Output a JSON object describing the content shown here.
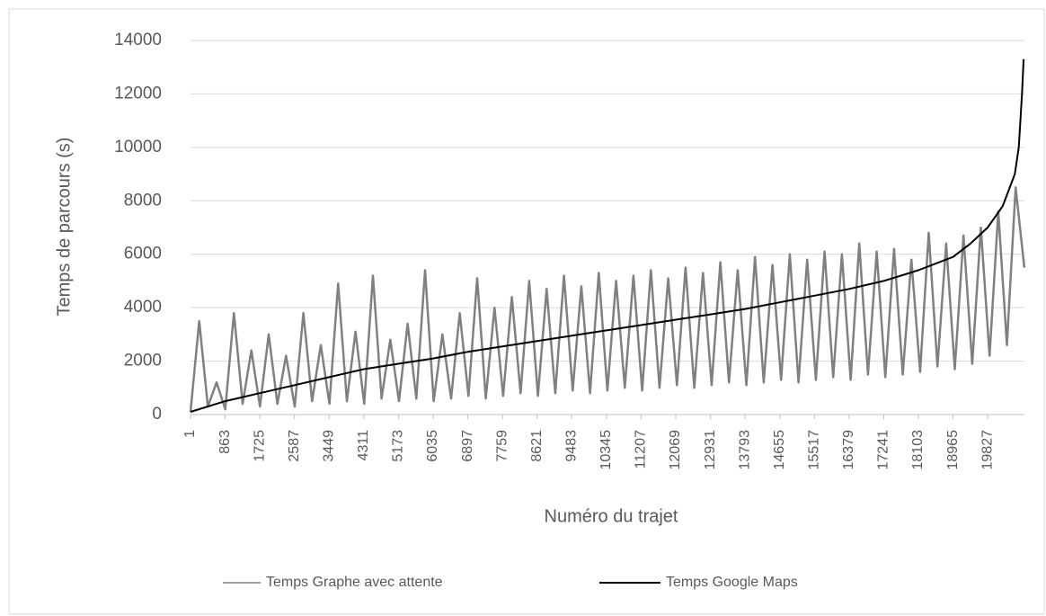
{
  "chart_data": {
    "type": "line",
    "xlabel": "Numéro du trajet",
    "ylabel": "Temps de parcours  (s)",
    "xlim": [
      1,
      20740
    ],
    "xticks": [
      1,
      863,
      1725,
      2587,
      3449,
      4311,
      5173,
      6035,
      6897,
      7759,
      8621,
      9483,
      10345,
      11207,
      12069,
      12931,
      13793,
      14655,
      15517,
      16379,
      17241,
      18103,
      18965,
      19827
    ],
    "ylim": [
      0,
      14000
    ],
    "yticks": [
      0,
      2000,
      4000,
      6000,
      8000,
      10000,
      12000,
      14000
    ],
    "grid": true,
    "legend": "bottom",
    "series": [
      {
        "name": "Temps Graphe avec attente",
        "color": "#808080",
        "x": [
          1,
          217,
          433,
          649,
          865,
          1081,
          1297,
          1513,
          1729,
          1945,
          2161,
          2377,
          2593,
          2809,
          3025,
          3241,
          3457,
          3673,
          3889,
          4105,
          4321,
          4537,
          4753,
          4969,
          5185,
          5401,
          5617,
          5833,
          6049,
          6265,
          6481,
          6697,
          6913,
          7129,
          7345,
          7561,
          7777,
          7993,
          8209,
          8425,
          8641,
          8857,
          9073,
          9289,
          9505,
          9721,
          9937,
          10153,
          10369,
          10585,
          10801,
          11017,
          11233,
          11449,
          11665,
          11881,
          12097,
          12313,
          12529,
          12745,
          12961,
          13177,
          13393,
          13609,
          13825,
          14041,
          14257,
          14473,
          14689,
          14905,
          15121,
          15337,
          15553,
          15769,
          15985,
          16201,
          16417,
          16633,
          16849,
          17065,
          17281,
          17497,
          17713,
          17929,
          18145,
          18361,
          18577,
          18793,
          19009,
          19225,
          19441,
          19657,
          19873,
          20089,
          20305,
          20521,
          20737
        ],
        "values": [
          100,
          3500,
          300,
          1200,
          200,
          3800,
          400,
          2400,
          300,
          3000,
          400,
          2200,
          300,
          3800,
          500,
          2600,
          400,
          4900,
          500,
          3100,
          400,
          5200,
          600,
          2800,
          500,
          3400,
          600,
          5400,
          500,
          3000,
          600,
          3800,
          700,
          5100,
          600,
          4000,
          700,
          4400,
          800,
          5000,
          700,
          4700,
          800,
          5200,
          900,
          4800,
          800,
          5300,
          900,
          5000,
          1000,
          5200,
          900,
          5400,
          1000,
          5100,
          1100,
          5500,
          1000,
          5300,
          1100,
          5700,
          1200,
          5400,
          1100,
          5900,
          1200,
          5600,
          1300,
          6000,
          1200,
          5800,
          1300,
          6100,
          1400,
          6000,
          1300,
          6400,
          1500,
          6100,
          1400,
          6200,
          1500,
          5800,
          1600,
          6800,
          1800,
          6400,
          1700,
          6700,
          1900,
          7000,
          2200,
          7600,
          2600,
          8500,
          5500
        ]
      },
      {
        "name": "Temps Google Maps",
        "color": "#000000",
        "x": [
          1,
          863,
          1725,
          2587,
          3449,
          4311,
          5173,
          6035,
          6897,
          7759,
          8621,
          9483,
          10345,
          11207,
          12069,
          12931,
          13793,
          14655,
          15517,
          16379,
          17241,
          18103,
          18965,
          19400,
          19827,
          20200,
          20500,
          20600,
          20680,
          20720
        ],
        "values": [
          100,
          500,
          800,
          1100,
          1400,
          1700,
          1900,
          2100,
          2350,
          2550,
          2750,
          2950,
          3150,
          3350,
          3550,
          3750,
          3950,
          4200,
          4450,
          4700,
          5000,
          5400,
          5900,
          6400,
          7000,
          7800,
          9000,
          10000,
          12000,
          13300
        ]
      }
    ]
  }
}
